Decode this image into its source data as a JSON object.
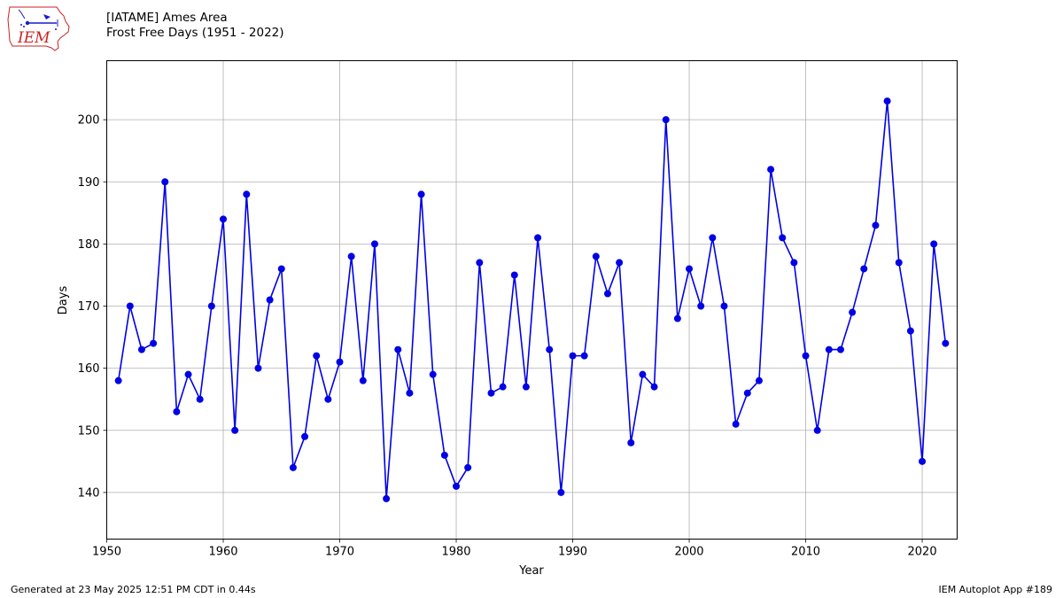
{
  "header": {
    "logo_text": "IEM",
    "title_line1": "[IATAME] Ames Area",
    "title_line2": "Frost Free Days (1951 - 2022)"
  },
  "footer": {
    "left": "Generated at 23 May 2025 12:51 PM CDT in 0.44s",
    "right": "IEM Autoplot App #189"
  },
  "colors": {
    "series": "#0000e6",
    "grid": "#b0b0b0",
    "logo_red": "#cc2222",
    "logo_blue": "#1a1acc"
  },
  "chart_data": {
    "type": "line",
    "xlabel": "Year",
    "ylabel": "Days",
    "xlim": [
      1950,
      2023
    ],
    "ylim": [
      132.5,
      209.5
    ],
    "xticks": [
      1950,
      1960,
      1970,
      1980,
      1990,
      2000,
      2010,
      2020
    ],
    "yticks": [
      140,
      150,
      160,
      170,
      180,
      190,
      200
    ],
    "grid": true,
    "marker": "circle",
    "series": [
      {
        "x": [
          1951,
          1952,
          1953,
          1954,
          1955,
          1956,
          1957,
          1958,
          1959,
          1960,
          1961,
          1962,
          1963,
          1964,
          1965,
          1966,
          1967,
          1968,
          1969,
          1970,
          1971,
          1972,
          1973,
          1974,
          1975,
          1976,
          1977,
          1978,
          1979,
          1980,
          1981,
          1982,
          1983,
          1984,
          1985,
          1986,
          1987,
          1988,
          1989,
          1990,
          1991,
          1992,
          1993,
          1994,
          1995,
          1996,
          1997,
          1998,
          1999,
          2000,
          2001,
          2002,
          2003,
          2004,
          2005,
          2006,
          2007,
          2008,
          2009,
          2010,
          2011,
          2012,
          2013,
          2014,
          2015,
          2016,
          2017,
          2018,
          2019,
          2020,
          2021,
          2022
        ],
        "y": [
          158,
          170,
          163,
          164,
          190,
          153,
          159,
          155,
          170,
          184,
          150,
          188,
          160,
          171,
          176,
          144,
          149,
          162,
          155,
          161,
          178,
          158,
          180,
          139,
          163,
          156,
          188,
          159,
          146,
          141,
          144,
          177,
          156,
          157,
          175,
          157,
          181,
          163,
          140,
          162,
          162,
          178,
          172,
          177,
          148,
          159,
          157,
          200,
          168,
          176,
          170,
          181,
          170,
          151,
          156,
          158,
          192,
          181,
          177,
          162,
          150,
          163,
          163,
          169,
          176,
          183,
          203,
          177,
          166,
          145,
          180,
          164
        ]
      }
    ]
  }
}
